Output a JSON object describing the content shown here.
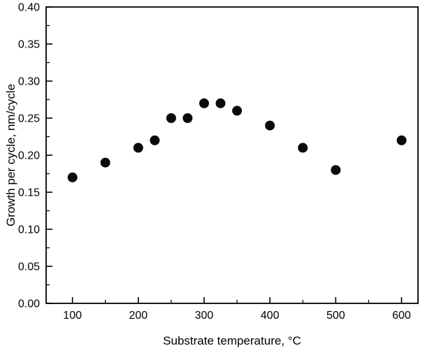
{
  "figure": {
    "background": "#ffffff"
  },
  "chart_data": {
    "type": "scatter",
    "title": "",
    "xlabel": "Substrate temperature, °C",
    "ylabel": "Growth per cycle, nm/cycle",
    "x": [
      100,
      150,
      200,
      225,
      250,
      275,
      300,
      325,
      350,
      400,
      450,
      500,
      600
    ],
    "y": [
      0.17,
      0.19,
      0.21,
      0.22,
      0.25,
      0.25,
      0.27,
      0.27,
      0.26,
      0.24,
      0.21,
      0.18,
      0.22
    ],
    "xlim": [
      60,
      625
    ],
    "ylim": [
      0,
      0.4
    ],
    "grid": false,
    "legend": "none",
    "marker": {
      "shape": "circle",
      "color": "#0a0a0a",
      "radius": 7
    },
    "axes": {
      "x_major_ticks": [
        100,
        200,
        300,
        400,
        500,
        600
      ],
      "x_tick_labels": [
        "100",
        "200",
        "300",
        "400",
        "500",
        "600"
      ],
      "x_minor_ticks": [
        150,
        250,
        350,
        450,
        550
      ],
      "y_major_ticks": [
        0,
        0.05,
        0.1,
        0.15,
        0.2,
        0.25,
        0.3,
        0.35,
        0.4
      ],
      "y_tick_labels": [
        "0.00",
        "0.05",
        "0.10",
        "0.15",
        "0.20",
        "0.25",
        "0.30",
        "0.35",
        "0.40"
      ],
      "y_minor_ticks": [
        0.025,
        0.075,
        0.125,
        0.175,
        0.225,
        0.275,
        0.325,
        0.375
      ],
      "frame_color": "#000000"
    }
  }
}
